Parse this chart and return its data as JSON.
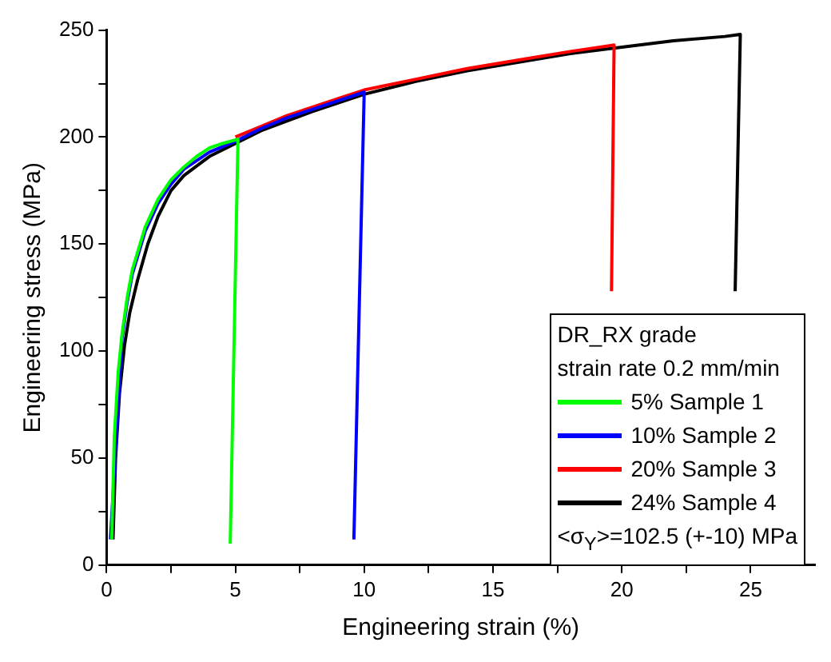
{
  "chart_data": {
    "type": "line",
    "xlabel": "Engineering strain (%)",
    "ylabel": "Engineering stress (MPa)",
    "legend_title": "DR_RX grade\nstrain rate 0.2 mm/min",
    "annotations": [
      "<σ$_{Y}$>=102.5 (+-10) MPa"
    ],
    "xlim": [
      0,
      27.5
    ],
    "ylim": [
      0,
      250
    ],
    "xticks": [
      0,
      {
        "value": 2.5,
        "label": null
      },
      5,
      {
        "value": 7.5,
        "label": null
      },
      10,
      {
        "value": 12.5,
        "label": null
      },
      15,
      {
        "value": 17.5,
        "label": null
      },
      20,
      {
        "value": 22.5,
        "label": null
      },
      25
    ],
    "yticks": [
      0,
      {
        "value": 25,
        "label": null
      },
      50,
      {
        "value": 75,
        "label": null
      },
      100,
      {
        "value": 125,
        "label": null
      },
      150,
      {
        "value": 175,
        "label": null
      },
      200,
      {
        "value": 225,
        "label": null
      },
      250
    ],
    "grid": false,
    "legend": "bottom right",
    "marker": "none",
    "line_style": "solid",
    "series": [
      {
        "name": "5% Sample 1",
        "color": "#00ff00",
        "x": [
          0.2,
          0.3,
          0.45,
          0.6,
          0.8,
          1,
          1.5,
          2,
          2.5,
          3,
          3.5,
          4,
          4.5,
          5.1,
          4.8
        ],
        "values": [
          12,
          60,
          90,
          108,
          125,
          138,
          158,
          171,
          180,
          186,
          191,
          195,
          197,
          199,
          10
        ]
      },
      {
        "name": "10% Sample 2",
        "color": "#0000ff",
        "x": [
          0.15,
          0.6,
          0.8,
          1,
          1.5,
          2,
          2.5,
          3,
          4,
          5,
          6,
          7,
          8,
          9,
          10,
          9.6
        ],
        "values": [
          12,
          106,
          123,
          136,
          156,
          169,
          178,
          185,
          193,
          198,
          204,
          209,
          213,
          217,
          221,
          12
        ]
      },
      {
        "name": "20% Sample 3",
        "color": "#ff0000",
        "x": [
          5,
          6,
          7,
          8,
          9,
          10,
          12,
          14,
          16,
          18,
          19.7,
          19.6
        ],
        "values": [
          200,
          205,
          210,
          214,
          218,
          222,
          227,
          232,
          236,
          240,
          243,
          128
        ]
      },
      {
        "name": "24% Sample 4",
        "color": "#000000",
        "x": [
          0.25,
          0.35,
          0.5,
          0.7,
          0.9,
          1.2,
          1.6,
          2,
          2.5,
          3,
          4,
          5,
          6,
          8,
          10,
          12,
          14,
          16,
          18,
          20,
          22,
          24,
          24.6,
          24.4
        ],
        "values": [
          12,
          50,
          80,
          103,
          118,
          133,
          150,
          163,
          175,
          182,
          191,
          197,
          203,
          212,
          220,
          226,
          231,
          235,
          239,
          242,
          245,
          247,
          248,
          128
        ]
      }
    ]
  }
}
